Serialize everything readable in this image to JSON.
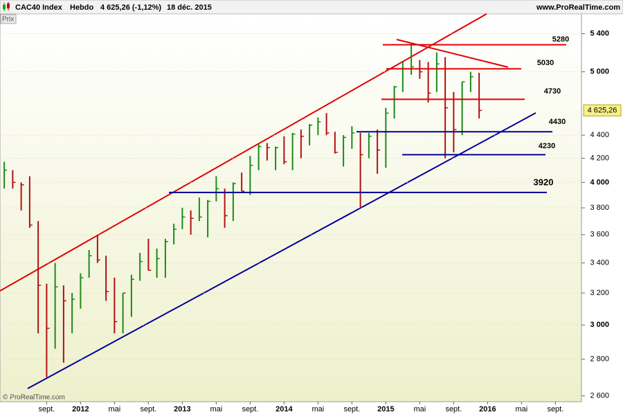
{
  "header": {
    "symbol": "CAC40 Index",
    "period": "Hebdo",
    "quote": "4 625,26 (-1,12%)",
    "date": "18 déc. 2015",
    "site": "www.ProRealTime.com"
  },
  "panel_label": "Prix",
  "copyright": "© ProRealTime.com",
  "chart_data": {
    "type": "ohlc",
    "log_scale": true,
    "categories": [
      null,
      null,
      null,
      null,
      null,
      "sept.",
      null,
      null,
      null,
      "2012",
      null,
      null,
      null,
      "mai",
      null,
      null,
      null,
      "sept.",
      null,
      null,
      null,
      "2013",
      null,
      null,
      null,
      "mai",
      null,
      null,
      null,
      "sept.",
      null,
      null,
      null,
      "2014",
      null,
      null,
      null,
      "mai",
      null,
      null,
      null,
      "sept.",
      null,
      null,
      null,
      "2015",
      null,
      null,
      null,
      "mai",
      null,
      null,
      null,
      "sept.",
      null,
      null,
      null,
      "2016",
      null,
      null,
      null,
      "mai",
      null,
      null,
      null,
      "sept.",
      null,
      null
    ],
    "high": [
      4170,
      4100,
      4000,
      4050,
      3700,
      3260,
      3400,
      3250,
      3200,
      3330,
      3490,
      3600,
      3450,
      3300,
      3200,
      3320,
      3470,
      3570,
      3500,
      3570,
      3680,
      3800,
      3780,
      3880,
      3860,
      4050,
      3950,
      4000,
      4080,
      4220,
      4320,
      4330,
      4300,
      4390,
      4420,
      4450,
      4500,
      4560,
      4600,
      4430,
      4400,
      4480,
      4420,
      4420,
      4450,
      4650,
      4860,
      5100,
      5300,
      5120,
      5100,
      5200,
      5150,
      4800,
      4900,
      5000,
      4990,
      null,
      null,
      null,
      null,
      null,
      null,
      null,
      null,
      null,
      null,
      null
    ],
    "low": [
      3950,
      3950,
      3780,
      3650,
      2950,
      2700,
      2860,
      2780,
      2950,
      3100,
      3300,
      3400,
      3150,
      2950,
      2950,
      3050,
      3280,
      3350,
      3300,
      3300,
      3530,
      3640,
      3600,
      3700,
      3580,
      3850,
      3650,
      3700,
      3930,
      3900,
      4100,
      4180,
      4100,
      4150,
      4100,
      4200,
      4310,
      4400,
      4400,
      4240,
      4130,
      4280,
      3800,
      4200,
      4070,
      4120,
      4550,
      4800,
      4970,
      4930,
      4700,
      4800,
      4200,
      4250,
      4400,
      4800,
      4550,
      null,
      null,
      null,
      null,
      null,
      null,
      null,
      null,
      null,
      null,
      null
    ],
    "close": [
      4100,
      4000,
      3980,
      3670,
      3250,
      2980,
      3240,
      3150,
      3160,
      3300,
      3450,
      3420,
      3210,
      3020,
      3200,
      3290,
      3410,
      3350,
      3430,
      3550,
      3640,
      3730,
      3720,
      3730,
      3850,
      3950,
      3740,
      3990,
      3930,
      4140,
      4300,
      4290,
      4290,
      4170,
      4410,
      4390,
      4490,
      4520,
      4420,
      4250,
      4380,
      4420,
      4230,
      4390,
      4270,
      4600,
      4850,
      5030,
      5050,
      5000,
      4790,
      5080,
      4650,
      4450,
      4900,
      4950,
      4625.26,
      null,
      null,
      null,
      null,
      null,
      null,
      null,
      null,
      null,
      null,
      null
    ],
    "last": {
      "value": 4625.26,
      "label": "4 625,26"
    },
    "ylim": [
      2570,
      5620
    ],
    "yticks": [
      {
        "value": 2600,
        "label": "2 600"
      },
      {
        "value": 2800,
        "label": "2 800"
      },
      {
        "value": 3000,
        "label": "3 000"
      },
      {
        "value": 3200,
        "label": "3 200"
      },
      {
        "value": 3400,
        "label": "3 400"
      },
      {
        "value": 3600,
        "label": "3 600"
      },
      {
        "value": 3800,
        "label": "3 800"
      },
      {
        "value": 4000,
        "label": "4 000"
      },
      {
        "value": 4200,
        "label": "4 200"
      },
      {
        "value": 4400,
        "label": "4 400"
      },
      {
        "value": 5000,
        "label": "5 000"
      },
      {
        "value": 5400,
        "label": "5 400"
      }
    ],
    "up_color": "#1a8a1a",
    "down_color": "#b01010",
    "levels": [
      {
        "value": 5280,
        "color": "#e00000"
      },
      {
        "value": 5030,
        "color": "#e00000"
      },
      {
        "value": 4730,
        "color": "#e00000"
      },
      {
        "value": 4430,
        "color": "#000099"
      },
      {
        "value": 4230,
        "color": "#000099"
      },
      {
        "value": 3920,
        "color": "#000099"
      }
    ]
  }
}
